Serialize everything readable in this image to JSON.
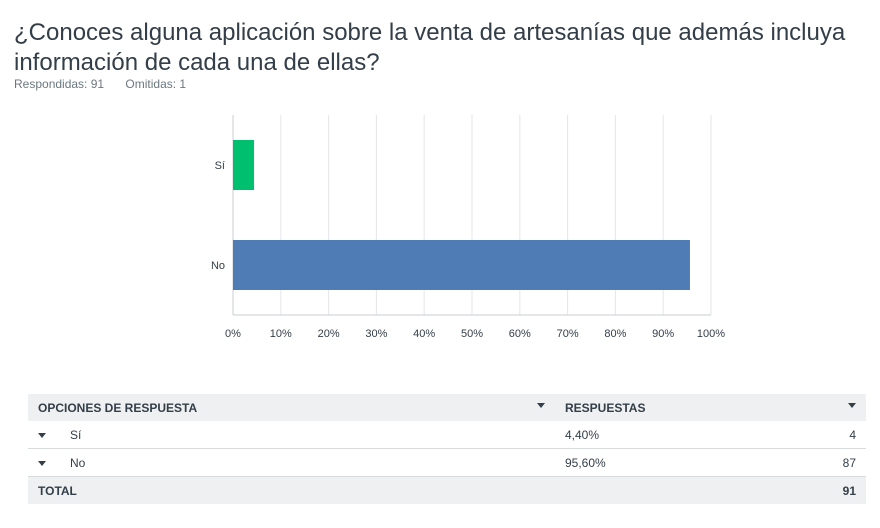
{
  "question": {
    "title": "¿Conoces alguna aplicación sobre la venta de artesanías que además incluya información de cada una de ellas?",
    "answered": "Respondidas: 91",
    "skipped": "Omitidas: 1"
  },
  "chart_data": {
    "type": "bar",
    "orientation": "horizontal",
    "categories": [
      "Sí",
      "No"
    ],
    "values": [
      4.4,
      95.6
    ],
    "colors": [
      "#00bf6f",
      "#507cb6"
    ],
    "xlim": [
      0,
      100
    ],
    "xticks": [
      "0%",
      "10%",
      "20%",
      "30%",
      "40%",
      "50%",
      "60%",
      "70%",
      "80%",
      "90%",
      "100%"
    ],
    "grid": true
  },
  "table": {
    "headers": {
      "options": "OPCIONES DE RESPUESTA",
      "responses": "RESPUESTAS"
    },
    "rows": [
      {
        "label": "Sí",
        "percent": "4,40%",
        "count": "4"
      },
      {
        "label": "No",
        "percent": "95,60%",
        "count": "87"
      }
    ],
    "total": {
      "label": "TOTAL",
      "count": "91"
    }
  }
}
